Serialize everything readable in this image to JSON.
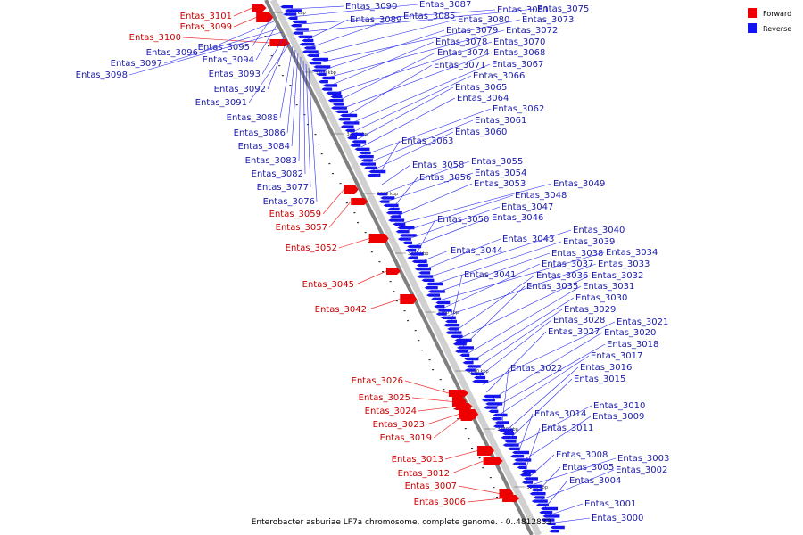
{
  "caption": "Enterobacter asburiae LF7a chromosome, complete genome. - 0..4812833",
  "legend": [
    {
      "label": "Forward",
      "color": "#ee0000"
    },
    {
      "label": "Reverse",
      "color": "#1414ee"
    }
  ],
  "colors": {
    "forward": "#ee0000",
    "reverse": "#1414ee",
    "backbone": "#808080"
  },
  "ticks": [
    "3310 kbp",
    "3300 kbp",
    "3290 kbp",
    "3280 kbp",
    "3270 kbp",
    "3260 kbp",
    "3250 kbp",
    "3240 kbp",
    "3230 kbp"
  ],
  "forward_genes": [
    "Entas_3101",
    "Entas_3099",
    "Entas_3100",
    "Entas_3059",
    "Entas_3057",
    "Entas_3052",
    "Entas_3045",
    "Entas_3042",
    "Entas_3026",
    "Entas_3025",
    "Entas_3024",
    "Entas_3023",
    "Entas_3019",
    "Entas_3013",
    "Entas_3012",
    "Entas_3007",
    "Entas_3006"
  ],
  "reverse_left_genes": [
    "Entas_3095",
    "Entas_3096",
    "Entas_3094",
    "Entas_3097",
    "Entas_3098",
    "Entas_3093",
    "Entas_3092",
    "Entas_3091",
    "Entas_3088",
    "Entas_3086",
    "Entas_3084",
    "Entas_3083",
    "Entas_3082",
    "Entas_3077",
    "Entas_3076"
  ],
  "reverse_right_genes": [
    "Entas_3090",
    "Entas_3087",
    "Entas_3081",
    "Entas_3075",
    "Entas_3089",
    "Entas_3085",
    "Entas_3080",
    "Entas_3073",
    "Entas_3079",
    "Entas_3072",
    "Entas_3078",
    "Entas_3070",
    "Entas_3074",
    "Entas_3068",
    "Entas_3071",
    "Entas_3067",
    "Entas_3066",
    "Entas_3065",
    "Entas_3064",
    "Entas_3062",
    "Entas_3061",
    "Entas_3060",
    "Entas_3063",
    "Entas_3058",
    "Entas_3055",
    "Entas_3054",
    "Entas_3056",
    "Entas_3053",
    "Entas_3049",
    "Entas_3048",
    "Entas_3047",
    "Entas_3046",
    "Entas_3050",
    "Entas_3044",
    "Entas_3043",
    "Entas_3040",
    "Entas_3039",
    "Entas_3038",
    "Entas_3034",
    "Entas_3037",
    "Entas_3033",
    "Entas_3041",
    "Entas_3036",
    "Entas_3032",
    "Entas_3035",
    "Entas_3031",
    "Entas_3030",
    "Entas_3029",
    "Entas_3028",
    "Entas_3021",
    "Entas_3027",
    "Entas_3020",
    "Entas_3018",
    "Entas_3017",
    "Entas_3022",
    "Entas_3016",
    "Entas_3015",
    "Entas_3010",
    "Entas_3014",
    "Entas_3009",
    "Entas_3011",
    "Entas_3008",
    "Entas_3003",
    "Entas_3005",
    "Entas_3002",
    "Entas_3004",
    "Entas_3001",
    "Entas_3000"
  ]
}
